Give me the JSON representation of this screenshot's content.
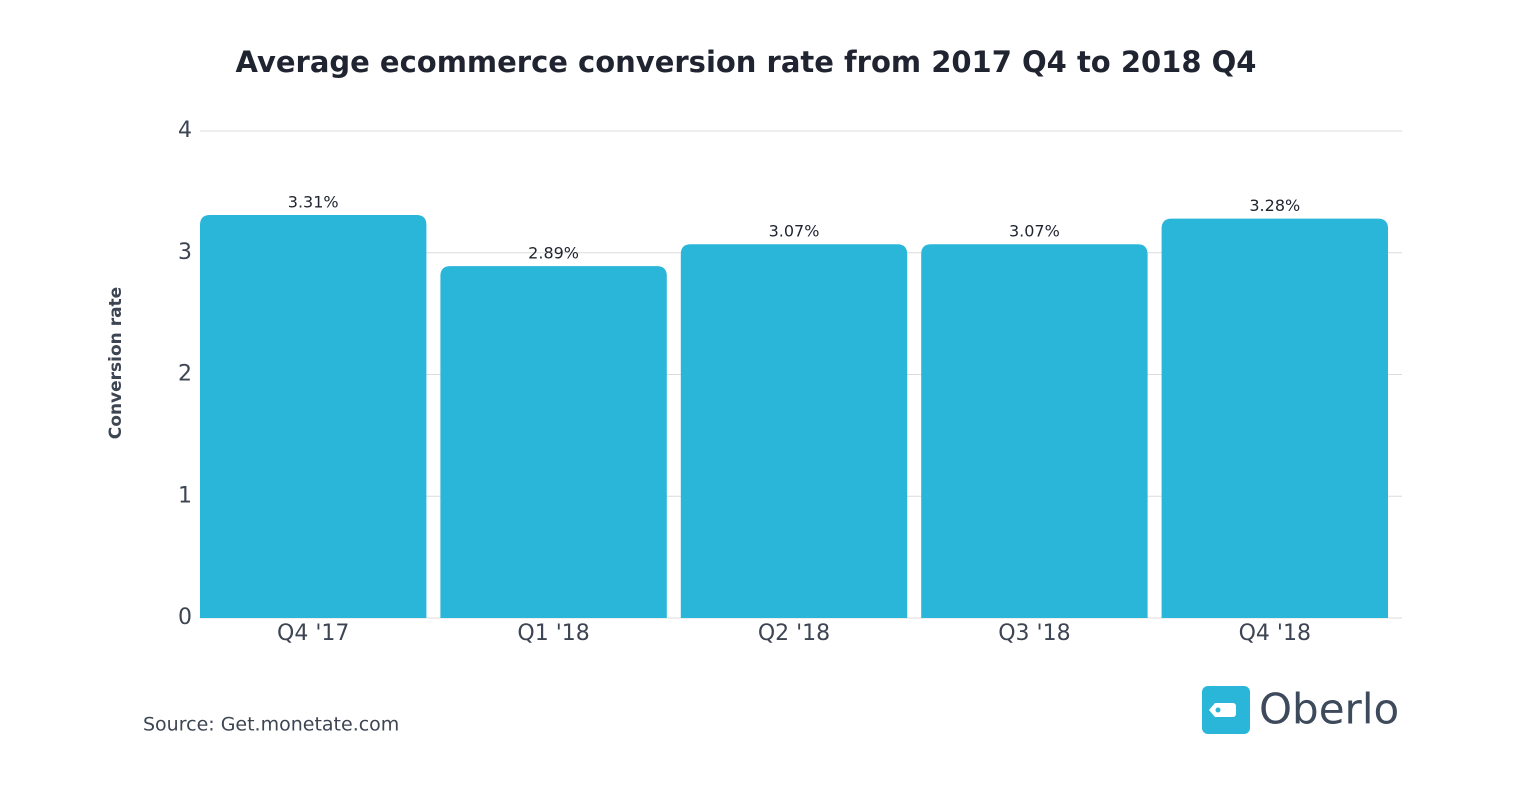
{
  "chart_data": {
    "type": "bar",
    "title": "Average ecommerce conversion rate from 2017 Q4 to 2018 Q4",
    "y_label": "Conversion rate",
    "categories": [
      "Q4 '17",
      "Q1 '18",
      "Q2 '18",
      "Q3 '18",
      "Q4 '18"
    ],
    "values": [
      3.31,
      2.89,
      3.07,
      3.07,
      3.28
    ],
    "value_labels": [
      "3.31%",
      "2.89%",
      "3.07%",
      "3.07%",
      "3.28%"
    ],
    "color": "#29b6d8",
    "ylim": [
      0,
      4
    ],
    "yticks": [
      0,
      1,
      2,
      3,
      4
    ],
    "grid": true,
    "source": "Source: Get.monetate.com",
    "brand": "Oberlo"
  }
}
